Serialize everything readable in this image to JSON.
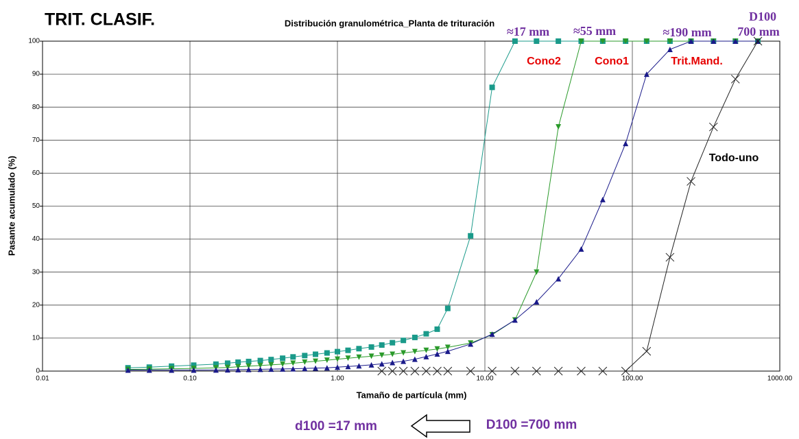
{
  "chart_data": {
    "type": "line",
    "title": "Distribución granulométrica_Planta de trituración",
    "x_label": "Tamaño de partícula (mm)",
    "y_label": "Pasante acumulado (%)",
    "x_scale": "log",
    "grid": true,
    "xlim": [
      0.01,
      1000
    ],
    "ylim": [
      0,
      100
    ],
    "xticks": [
      {
        "value": 0.01,
        "label": "0.01"
      },
      {
        "value": 0.1,
        "label": "0.10"
      },
      {
        "value": 1,
        "label": "1.00"
      },
      {
        "value": 10,
        "label": "10.00"
      },
      {
        "value": 100,
        "label": "100.00"
      },
      {
        "value": 1000,
        "label": "1000.00"
      }
    ],
    "yticks": [
      0,
      10,
      20,
      30,
      40,
      50,
      60,
      70,
      80,
      90,
      100
    ],
    "x": [
      0.038,
      0.053,
      0.075,
      0.106,
      0.15,
      0.18,
      0.212,
      0.25,
      0.3,
      0.355,
      0.425,
      0.5,
      0.6,
      0.71,
      0.85,
      1.0,
      1.18,
      1.4,
      1.7,
      2.0,
      2.36,
      2.8,
      3.35,
      4.0,
      4.75,
      5.6,
      8,
      11.2,
      16,
      22.4,
      31.5,
      45,
      63,
      90,
      125,
      180,
      250,
      355,
      500,
      710
    ],
    "series": [
      {
        "color": "#1a9a8a",
        "marker": "square",
        "values": [
          1.0,
          1.2,
          1.5,
          1.8,
          2.1,
          2.4,
          2.7,
          2.9,
          3.2,
          3.5,
          3.9,
          4.3,
          4.7,
          5.1,
          5.5,
          5.9,
          6.3,
          6.8,
          7.3,
          7.9,
          8.6,
          9.3,
          10.2,
          11.3,
          12.7,
          19,
          41,
          86,
          100,
          100,
          100,
          100,
          100,
          100,
          100,
          100,
          100,
          100,
          100,
          100
        ]
      },
      {
        "color": "#2a9a2a",
        "marker": "triangle-down",
        "values": [
          0.5,
          0.6,
          0.7,
          0.8,
          1.0,
          1.1,
          1.3,
          1.5,
          1.7,
          1.9,
          2.1,
          2.4,
          2.7,
          3.0,
          3.3,
          3.6,
          3.9,
          4.2,
          4.5,
          4.8,
          5.1,
          5.5,
          5.9,
          6.3,
          6.7,
          7.2,
          8.5,
          11,
          15.5,
          30,
          74,
          100,
          100,
          100,
          100,
          100,
          100,
          100,
          100,
          100
        ]
      },
      {
        "color": "#1a1a8a",
        "marker": "triangle-up",
        "values": [
          0.3,
          0.3,
          0.3,
          0.3,
          0.35,
          0.4,
          0.45,
          0.5,
          0.55,
          0.6,
          0.65,
          0.7,
          0.8,
          0.9,
          1.0,
          1.2,
          1.4,
          1.6,
          1.9,
          2.2,
          2.6,
          3.0,
          3.6,
          4.4,
          5.2,
          6.0,
          8.2,
          11.2,
          15.5,
          21,
          28,
          37,
          52,
          69,
          90,
          97.5,
          100,
          100,
          100,
          100
        ]
      },
      {
        "color": "#222222",
        "marker": "x",
        "values": [
          null,
          null,
          null,
          null,
          null,
          null,
          null,
          null,
          null,
          null,
          null,
          null,
          null,
          null,
          null,
          null,
          null,
          null,
          null,
          0,
          0,
          0,
          0,
          0,
          0,
          0,
          0,
          0,
          0,
          0,
          0,
          0,
          0,
          0,
          6,
          34.5,
          57.5,
          74,
          88.5,
          100
        ]
      }
    ],
    "annotations": [
      "TRIT. CLASIF.",
      "≈17 mm",
      "≈55 mm",
      "≈190 mm",
      "D100",
      "700 mm",
      "Cono2",
      "Cono1",
      "Trit.Mand.",
      "Todo-uno",
      "d100 =17 mm",
      "D100 =700 mm"
    ]
  }
}
